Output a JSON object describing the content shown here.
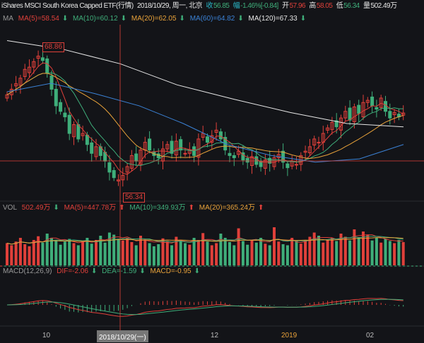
{
  "header": {
    "title": "iShares MSCI South Korea Capped ETF(行情)",
    "date": "2018/10/29, 周一, 北京",
    "close_label": "收",
    "close": "56.85",
    "change_label": "幅",
    "change": "-1.46%[-0.84]",
    "open_label": "开",
    "open": "57.96",
    "high_label": "高",
    "high": "58.05",
    "low_label": "低",
    "low": "56.34",
    "vol_label": "量",
    "vol": "502.49万"
  },
  "ma_legend": {
    "label": "MA",
    "ma5": "MA(5)=58.54",
    "ma10": "MA(10)=60.12",
    "ma20": "MA(20)=62.05",
    "ma60": "MA(60)=64.82",
    "ma120": "MA(120)=67.33"
  },
  "vol_legend": {
    "label": "VOL",
    "vol": "502.49万",
    "ma5": "MA(5)=447.78万",
    "ma10": "MA(10)=349.93万",
    "ma20": "MA(20)=365.24万"
  },
  "macd_legend": {
    "label": "MACD(12,26,9)",
    "dif": "DIF=-2.06",
    "dea": "DEA=-1.59",
    "macd": "MACD=-0.95"
  },
  "markers": {
    "high": "68.86",
    "low": "56.34"
  },
  "x_axis": {
    "labels": [
      "10",
      "12",
      "2019",
      "02"
    ],
    "crosshair_date": "2018/10/29(一)"
  },
  "colors": {
    "up": "#e0403a",
    "down": "#3fae7a",
    "ma5": "#e0403a",
    "ma10": "#3fae7a",
    "ma20": "#e8a23a",
    "ma60": "#3b82d6",
    "ma120": "#e6e6e6",
    "background": "#131418"
  },
  "chart_data": {
    "type": "candlestick",
    "closes": [
      64.5,
      65,
      65.5,
      66,
      66.8,
      67,
      67.5,
      68,
      67.6,
      66.5,
      65,
      63.5,
      63,
      62.5,
      61,
      61.8,
      60.5,
      61,
      60,
      59.2,
      59.8,
      59,
      58.5,
      57.5,
      57,
      56.8,
      57.2,
      58,
      59,
      58.5,
      59.5,
      60.2,
      59.5,
      59,
      58.8,
      59.6,
      60,
      59.2,
      60.3,
      59.5,
      59.2,
      59.5,
      59,
      60.5,
      61,
      60.2,
      60.8,
      61.3,
      60.5,
      59.5,
      59,
      58.8,
      59.4,
      58.6,
      58.4,
      58.9,
      58.2,
      58,
      58.6,
      58.3,
      58.8,
      59.1,
      58.4,
      57.9,
      58.5,
      58.2,
      59,
      59.4,
      59.8,
      60.5,
      60.2,
      61,
      61.5,
      62,
      61.6,
      62.4,
      63,
      62.2,
      63.4,
      62.8,
      63.8,
      64,
      63.5,
      63.2,
      64.2,
      63,
      62.4,
      62.9,
      62.5,
      62.85
    ],
    "volumes": [
      420,
      380,
      450,
      520,
      400,
      360,
      480,
      550,
      430,
      600,
      520,
      480,
      390,
      450,
      500,
      420,
      380,
      460,
      520,
      410,
      480,
      560,
      430,
      620,
      580,
      502,
      470,
      520,
      440,
      380,
      560,
      490,
      420,
      360,
      400,
      510,
      460,
      380,
      540,
      470,
      420,
      390,
      520,
      480,
      610,
      450,
      380,
      420,
      600,
      520,
      440,
      380,
      700,
      460,
      390,
      480,
      430,
      520,
      410,
      380,
      720,
      450,
      400,
      380,
      520,
      460,
      410,
      480,
      540,
      620,
      560,
      430,
      480,
      520,
      460,
      600,
      540,
      470,
      680,
      520,
      640,
      580,
      470,
      520,
      430,
      500,
      460,
      420,
      480,
      440
    ],
    "ma60": [
      64.77,
      65.54,
      64.6,
      63.5,
      61.9,
      60,
      59,
      58.4,
      58.7,
      60
    ],
    "ma120": [
      69.4,
      68.6,
      67.3,
      65.4,
      64.1,
      62.9,
      61.9,
      61.6
    ],
    "price_range": [
      55,
      70
    ]
  }
}
